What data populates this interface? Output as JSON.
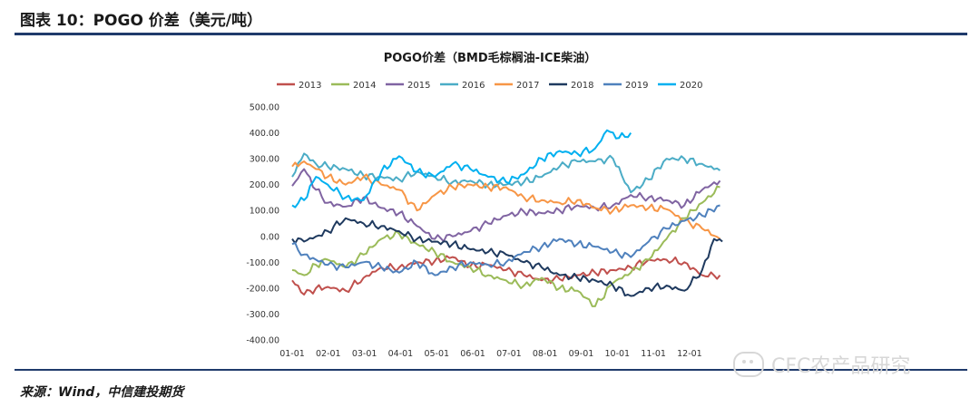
{
  "figure": {
    "title": "图表 10：POGO 价差（美元/吨）",
    "source": "来源：Wind，中信建投期货",
    "watermark": "CFC农产品研究"
  },
  "chart_data": {
    "type": "line",
    "title": "POGO价差（BMD毛棕榈油-ICE柴油）",
    "xlabel": "",
    "ylabel": "",
    "x_tick_labels": [
      "01-01",
      "02-01",
      "03-01",
      "04-01",
      "05-01",
      "06-01",
      "07-01",
      "08-01",
      "09-01",
      "10-01",
      "11-01",
      "12-01"
    ],
    "y_tick_labels": [
      "500.00",
      "400.00",
      "300.00",
      "200.00",
      "100.00",
      "0.00",
      "-100.00",
      "-200.00",
      "-300.00",
      "-400.00"
    ],
    "ylim": [
      -400,
      500
    ],
    "xlim": [
      0,
      365
    ],
    "grid": false,
    "legend_position": "top",
    "series": [
      {
        "name": "2013",
        "color": "#c0504d",
        "x": [
          0,
          10,
          20,
          30,
          45,
          60,
          75,
          90,
          105,
          120,
          135,
          150,
          165,
          180,
          195,
          210,
          225,
          240,
          255,
          270,
          285,
          300,
          315,
          330,
          345,
          360
        ],
        "y": [
          -170,
          -225,
          -200,
          -195,
          -210,
          -160,
          -120,
          -120,
          -100,
          -95,
          -80,
          -115,
          -110,
          -130,
          -150,
          -170,
          -165,
          -150,
          -140,
          -130,
          -120,
          -90,
          -90,
          -100,
          -150,
          -150
        ]
      },
      {
        "name": "2014",
        "color": "#9bbb59",
        "x": [
          0,
          10,
          20,
          30,
          45,
          60,
          75,
          90,
          105,
          120,
          135,
          150,
          165,
          180,
          195,
          210,
          225,
          240,
          255,
          270,
          285,
          300,
          315,
          330,
          345,
          360
        ],
        "y": [
          -130,
          -150,
          -110,
          -90,
          -120,
          -70,
          -10,
          10,
          -30,
          -60,
          -100,
          -120,
          -150,
          -170,
          -190,
          -160,
          -200,
          -210,
          -270,
          -180,
          -140,
          -90,
          -10,
          70,
          130,
          190
        ]
      },
      {
        "name": "2015",
        "color": "#8064a2",
        "x": [
          0,
          10,
          20,
          30,
          45,
          60,
          75,
          90,
          105,
          120,
          135,
          150,
          165,
          180,
          195,
          210,
          225,
          240,
          255,
          270,
          285,
          300,
          315,
          330,
          345,
          360
        ],
        "y": [
          195,
          260,
          180,
          130,
          115,
          150,
          110,
          90,
          40,
          -10,
          0,
          20,
          50,
          80,
          95,
          90,
          100,
          120,
          110,
          120,
          160,
          150,
          140,
          120,
          180,
          215
        ]
      },
      {
        "name": "2016",
        "color": "#4bacc6",
        "x": [
          0,
          10,
          20,
          30,
          45,
          60,
          75,
          90,
          105,
          120,
          135,
          150,
          165,
          180,
          195,
          210,
          225,
          240,
          255,
          270,
          285,
          300,
          315,
          330,
          345,
          360
        ],
        "y": [
          230,
          320,
          280,
          270,
          260,
          235,
          230,
          220,
          250,
          230,
          210,
          215,
          200,
          200,
          210,
          230,
          270,
          290,
          290,
          300,
          170,
          220,
          300,
          300,
          280,
          255
        ]
      },
      {
        "name": "2017",
        "color": "#f79646",
        "x": [
          0,
          10,
          20,
          30,
          45,
          60,
          75,
          90,
          105,
          120,
          135,
          150,
          165,
          180,
          195,
          210,
          225,
          240,
          255,
          270,
          285,
          300,
          315,
          330,
          345,
          360
        ],
        "y": [
          270,
          290,
          260,
          230,
          200,
          230,
          200,
          180,
          100,
          160,
          190,
          200,
          190,
          190,
          150,
          140,
          130,
          140,
          110,
          100,
          120,
          110,
          105,
          60,
          30,
          -10
        ]
      },
      {
        "name": "2018",
        "color": "#1f3a5f",
        "x": [
          0,
          10,
          20,
          30,
          45,
          60,
          75,
          90,
          105,
          120,
          135,
          150,
          165,
          180,
          195,
          210,
          225,
          240,
          255,
          270,
          285,
          300,
          315,
          330,
          345,
          355,
          362
        ],
        "y": [
          -10,
          -20,
          0,
          20,
          70,
          50,
          40,
          20,
          -10,
          -20,
          -30,
          -50,
          -60,
          -70,
          -100,
          -120,
          -150,
          -160,
          -170,
          -190,
          -230,
          -200,
          -190,
          -210,
          -130,
          -10,
          -20
        ]
      },
      {
        "name": "2019",
        "color": "#4f81bd",
        "x": [
          0,
          10,
          20,
          30,
          45,
          60,
          75,
          90,
          105,
          120,
          135,
          150,
          165,
          180,
          195,
          210,
          225,
          240,
          255,
          270,
          285,
          300,
          315,
          330,
          345,
          360
        ],
        "y": [
          -30,
          -70,
          -90,
          -110,
          -120,
          -100,
          -120,
          -140,
          -100,
          -150,
          -120,
          -100,
          -110,
          -100,
          -60,
          -40,
          -10,
          -30,
          -40,
          -60,
          -80,
          -20,
          30,
          60,
          80,
          120
        ]
      },
      {
        "name": "2020",
        "color": "#00b0f0",
        "x": [
          0,
          10,
          20,
          30,
          45,
          60,
          75,
          90,
          105,
          120,
          135,
          150,
          165,
          180,
          195,
          210,
          225,
          240,
          255,
          265,
          275,
          285
        ],
        "y": [
          120,
          140,
          230,
          200,
          150,
          140,
          250,
          310,
          250,
          230,
          280,
          260,
          230,
          210,
          240,
          300,
          330,
          320,
          340,
          410,
          380,
          400
        ]
      }
    ]
  }
}
